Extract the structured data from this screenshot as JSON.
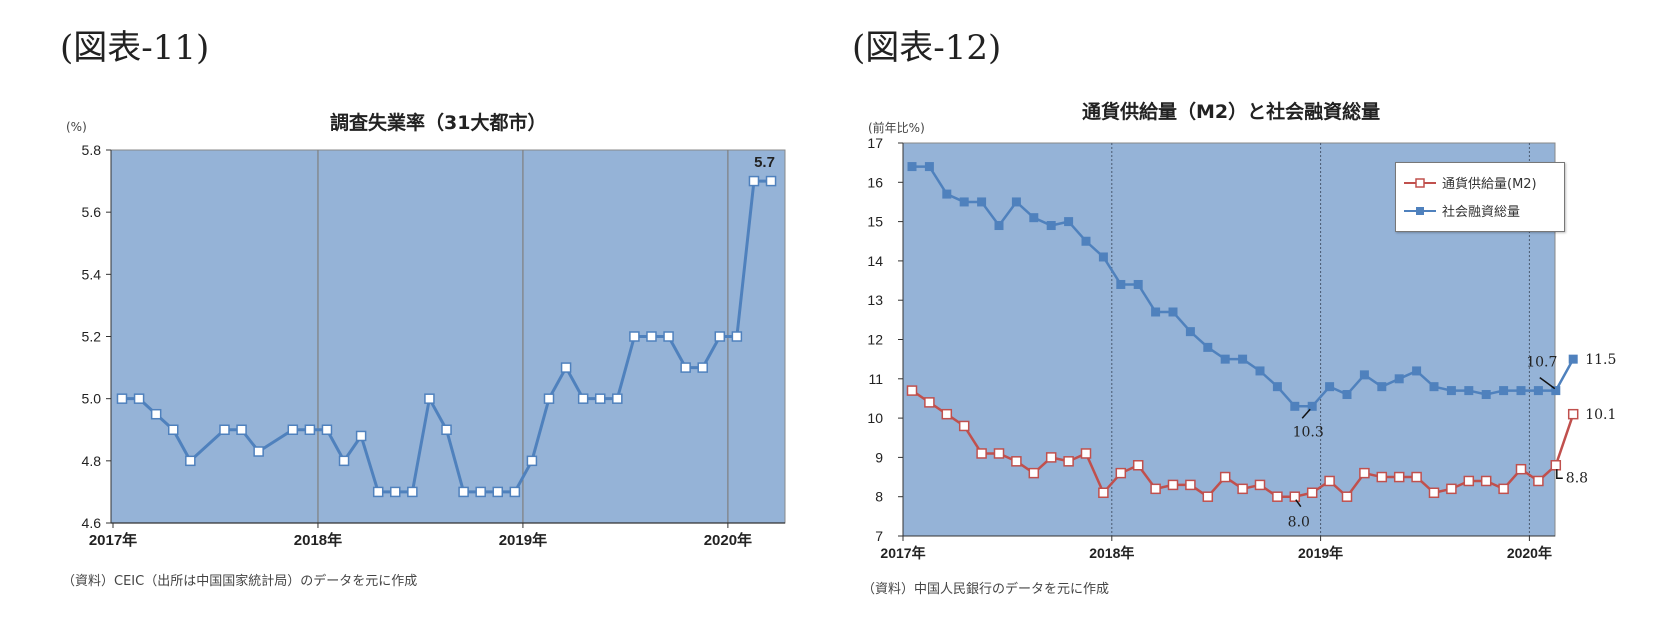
{
  "figures": [
    {
      "label": "(図表-11)",
      "title": "調査失業率（31大都市）",
      "unit": "(%)",
      "source": "（資料）CEIC（出所は中国国家統計局）のデータを元に作成",
      "annotation": "5.7"
    },
    {
      "label": "(図表-12)",
      "title": "通貨供給量（M2）と社会融資総量",
      "unit": "(前年比%)",
      "source": "（資料）中国人民銀行のデータを元に作成",
      "legend": [
        "通貨供給量(M2)",
        "社会融資総量"
      ],
      "annotations": [
        "10.3",
        "8.0",
        "10.7",
        "11.5",
        "10.1",
        "8.8"
      ]
    }
  ],
  "colors": {
    "plot_bg": "#95b3d7",
    "line_blue": "#4f81bd",
    "line_red": "#c0504d",
    "marker_fill": "#ffffff",
    "gridline": "#7f7f7f"
  },
  "chart_data": [
    {
      "type": "line",
      "title": "調査失業率（31大都市）",
      "xlabel": "",
      "ylabel": "(%)",
      "ylim": [
        4.6,
        5.8
      ],
      "yticks": [
        4.6,
        4.8,
        5.0,
        5.2,
        5.4,
        5.6,
        5.8
      ],
      "xtick_labels": [
        "2017年",
        "2018年",
        "2019年",
        "2020年"
      ],
      "grid": "vertical lines at year boundaries",
      "x": [
        "2017-01",
        "2017-02",
        "2017-03",
        "2017-04",
        "2017-05",
        "2017-06",
        "2017-07",
        "2017-08",
        "2017-09",
        "2017-10",
        "2017-11",
        "2017-12",
        "2018-01",
        "2018-02",
        "2018-03",
        "2018-04",
        "2018-05",
        "2018-06",
        "2018-07",
        "2018-08",
        "2018-09",
        "2018-10",
        "2018-11",
        "2018-12",
        "2019-01",
        "2019-02",
        "2019-03",
        "2019-04",
        "2019-05",
        "2019-06",
        "2019-07",
        "2019-08",
        "2019-09",
        "2019-10",
        "2019-11",
        "2019-12",
        "2020-01",
        "2020-02",
        "2020-03"
      ],
      "series": [
        {
          "name": "調査失業率（31大都市）",
          "values": [
            5.0,
            5.0,
            4.95,
            4.9,
            4.8,
            null,
            4.9,
            4.9,
            4.83,
            null,
            4.9,
            4.9,
            4.9,
            4.8,
            4.88,
            4.7,
            4.7,
            4.7,
            5.0,
            4.9,
            4.7,
            4.7,
            4.7,
            4.7,
            4.8,
            5.0,
            5.1,
            5.0,
            5.0,
            5.0,
            5.2,
            5.2,
            5.2,
            5.1,
            5.1,
            5.2,
            5.2,
            5.7,
            5.7
          ]
        }
      ],
      "annotations": [
        {
          "text": "5.7",
          "x": "2020-02"
        }
      ]
    },
    {
      "type": "line",
      "title": "通貨供給量（M2）と社会融資総量",
      "xlabel": "",
      "ylabel": "(前年比%)",
      "ylim": [
        7,
        17
      ],
      "yticks": [
        7,
        8,
        9,
        10,
        11,
        12,
        13,
        14,
        15,
        16,
        17
      ],
      "xtick_labels": [
        "2017年",
        "2018年",
        "2019年",
        "2020年"
      ],
      "grid": "dotted vertical lines at year boundaries",
      "legend_position": "upper right",
      "x": [
        "2017-01",
        "2017-02",
        "2017-03",
        "2017-04",
        "2017-05",
        "2017-06",
        "2017-07",
        "2017-08",
        "2017-09",
        "2017-10",
        "2017-11",
        "2017-12",
        "2018-01",
        "2018-02",
        "2018-03",
        "2018-04",
        "2018-05",
        "2018-06",
        "2018-07",
        "2018-08",
        "2018-09",
        "2018-10",
        "2018-11",
        "2018-12",
        "2019-01",
        "2019-02",
        "2019-03",
        "2019-04",
        "2019-05",
        "2019-06",
        "2019-07",
        "2019-08",
        "2019-09",
        "2019-10",
        "2019-11",
        "2019-12",
        "2020-01",
        "2020-02",
        "2020-03"
      ],
      "series": [
        {
          "name": "通貨供給量(M2)",
          "values": [
            10.7,
            10.4,
            10.1,
            9.8,
            9.1,
            9.1,
            8.9,
            8.6,
            9.0,
            8.9,
            9.1,
            8.1,
            8.6,
            8.8,
            8.2,
            8.3,
            8.3,
            8.0,
            8.5,
            8.2,
            8.3,
            8.0,
            8.0,
            8.1,
            8.4,
            8.0,
            8.6,
            8.5,
            8.5,
            8.5,
            8.1,
            8.2,
            8.4,
            8.4,
            8.2,
            8.7,
            8.4,
            8.8,
            10.1
          ]
        },
        {
          "name": "社会融資総量",
          "values": [
            16.4,
            16.4,
            15.7,
            15.5,
            15.5,
            14.9,
            15.5,
            15.1,
            14.9,
            15.0,
            14.5,
            14.1,
            13.4,
            13.4,
            12.7,
            12.7,
            12.2,
            11.8,
            11.5,
            11.5,
            11.2,
            10.8,
            10.3,
            10.3,
            10.8,
            10.6,
            11.1,
            10.8,
            11.0,
            11.2,
            10.8,
            10.7,
            10.7,
            10.6,
            10.7,
            10.7,
            10.7,
            10.7,
            11.5
          ]
        }
      ],
      "annotations": [
        {
          "text": "10.3",
          "series": "社会融資総量",
          "x": "2018-12"
        },
        {
          "text": "8.0",
          "series": "通貨供給量(M2)",
          "x": "2018-11"
        },
        {
          "text": "10.7",
          "series": "社会融資総量",
          "x": "2020-02"
        },
        {
          "text": "11.5",
          "series": "社会融資総量",
          "x": "2020-03"
        },
        {
          "text": "10.1",
          "series": "通貨供給量(M2)",
          "x": "2020-03"
        },
        {
          "text": "8.8",
          "series": "通貨供給量(M2)",
          "x": "2020-02"
        }
      ]
    }
  ]
}
